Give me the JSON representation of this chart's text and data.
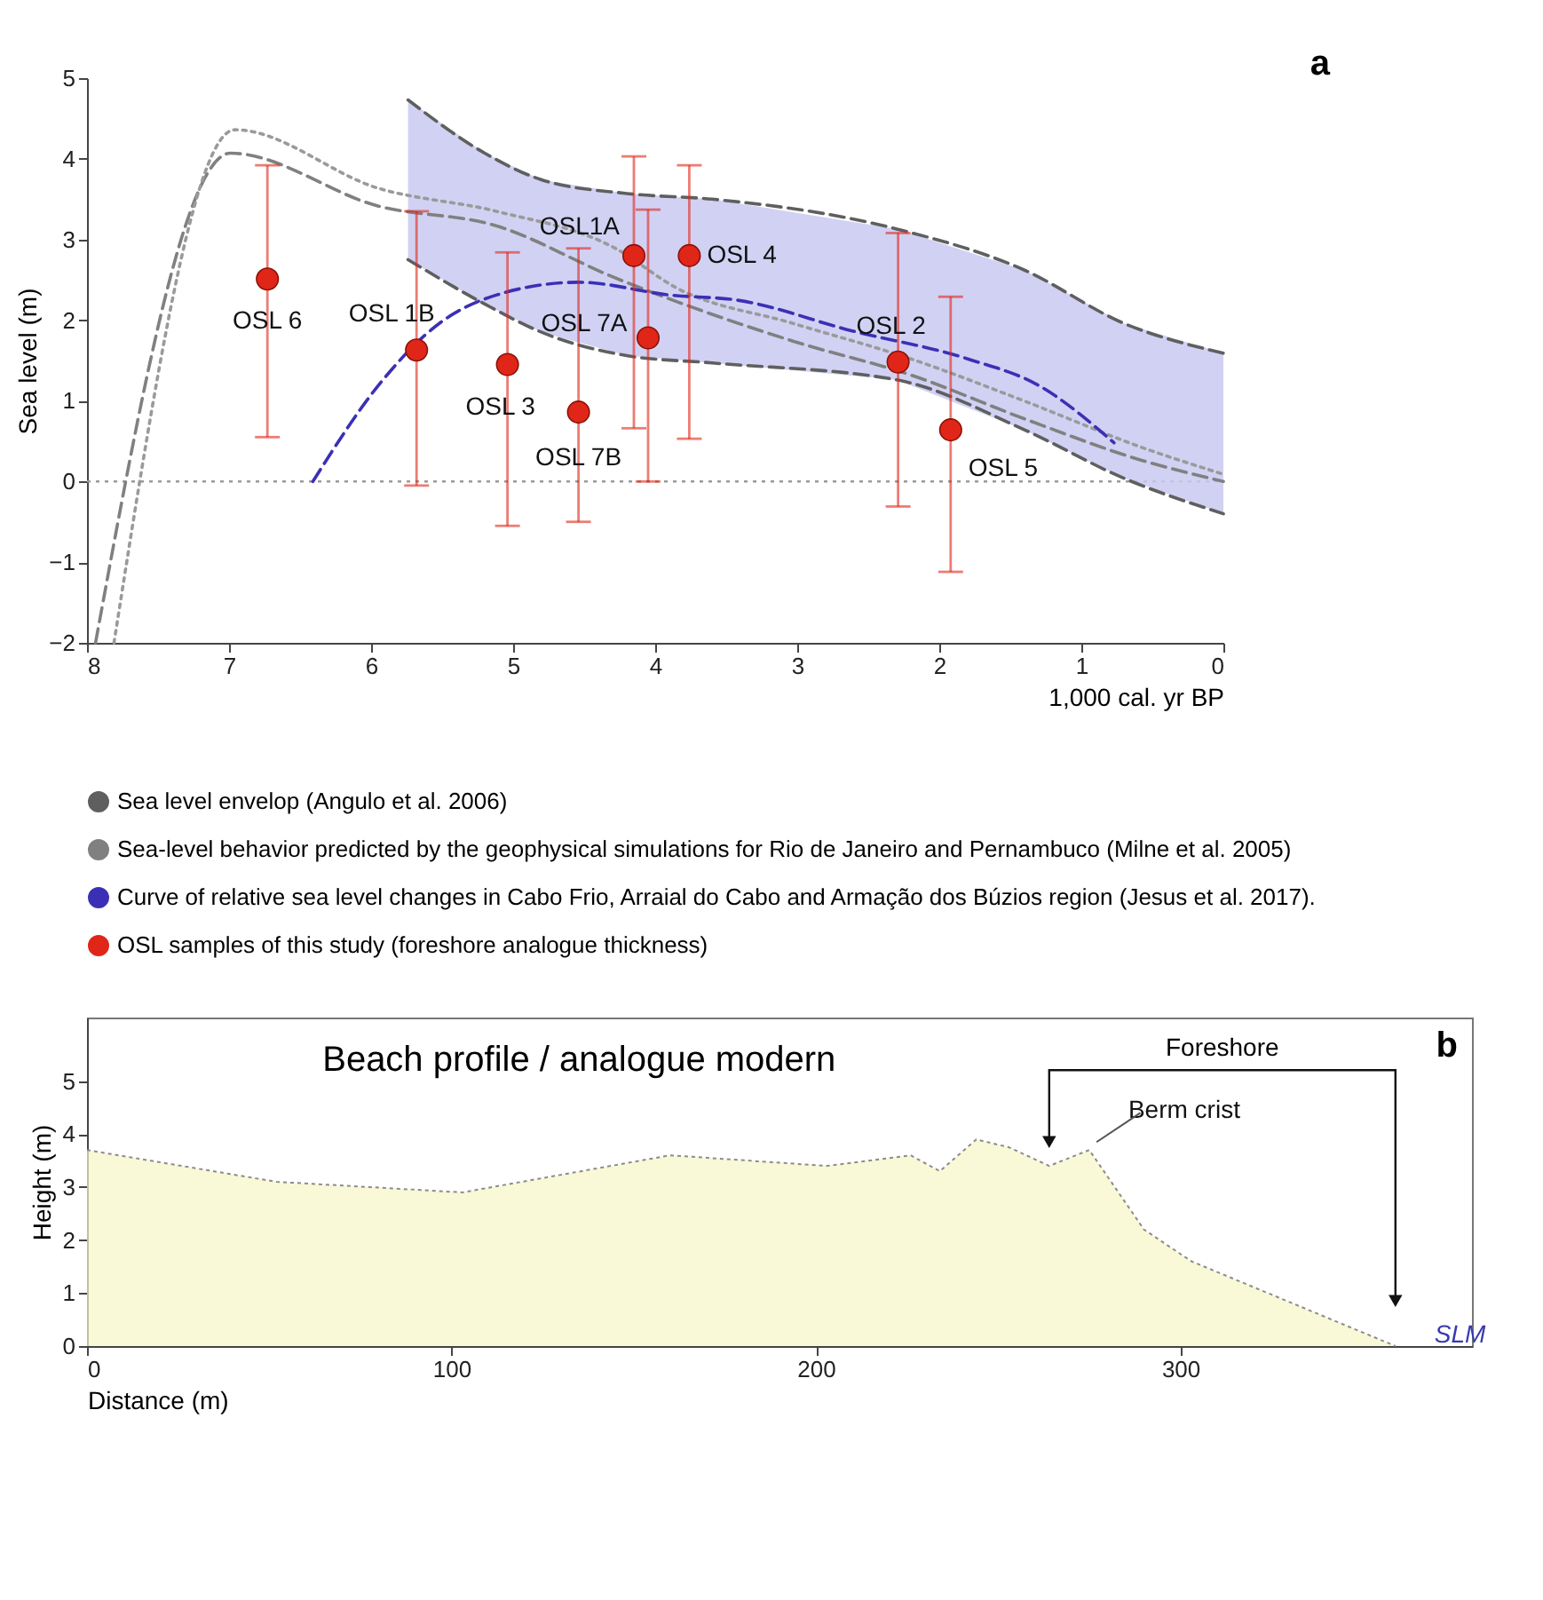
{
  "chart_data": [
    {
      "type": "line",
      "xlabel": "1,000 cal. yr BP",
      "ylabel": "Sea level (m)",
      "xlim": [
        8,
        0
      ],
      "ylim": [
        -2,
        5
      ],
      "xticks": [
        8,
        7,
        6,
        5,
        4,
        3,
        2,
        1,
        0
      ],
      "yticks": [
        -2,
        -1,
        0,
        1,
        2,
        3,
        4,
        5
      ],
      "grid": false,
      "legend": "bottom",
      "ref_lines": [
        {
          "axis": "y",
          "value": 0,
          "color": "#9a9a9a",
          "line_style": "dotted"
        }
      ],
      "series": [
        {
          "name": "Sea level envelop (Angulo et al. 2006)",
          "type": "line",
          "color": "#5f5f5f",
          "line_style": "dashed",
          "x": [
            5.74,
            5.2,
            4.8,
            4.2,
            3.6,
            2.3,
            1.4,
            0.7,
            0
          ],
          "values": [
            4.73,
            4.07,
            3.74,
            3.57,
            3.5,
            3.13,
            2.62,
            1.96,
            1.59
          ],
          "lower": [
            2.75,
            2.2,
            1.85,
            1.56,
            1.47,
            1.26,
            0.64,
            0.04,
            -0.4
          ],
          "upper": [
            4.73,
            4.07,
            3.74,
            3.57,
            3.5,
            3.13,
            2.62,
            1.96,
            1.59
          ]
        },
        {
          "type": "line",
          "color": "#5f5f5f",
          "line_style": "dashed",
          "x": [
            5.74,
            5.2,
            4.8,
            4.2,
            3.6,
            2.3,
            1.4,
            0.7,
            0
          ],
          "values": [
            2.75,
            2.2,
            1.85,
            1.56,
            1.47,
            1.26,
            0.64,
            0.04,
            -0.4
          ]
        },
        {
          "name": "Sea-level behavior predicted by the geophysical simulations for Rio de Janeiro and Pernambuco (Milne et al. 2005)",
          "type": "line",
          "color": "#808080",
          "line_style": "dashed",
          "x": [
            7.94,
            6.99,
            5.94,
            5.12,
            4.29,
            3.03,
            2.2,
            1.39,
            0.57,
            0
          ],
          "values": [
            -2,
            4.07,
            3.41,
            3.17,
            2.53,
            1.74,
            1.32,
            0.77,
            0.26,
            0
          ]
        },
        {
          "type": "line",
          "color": "#9a9a9a",
          "line_style": "dotted",
          "x": [
            7.81,
            6.96,
            5.94,
            5.12,
            4.29,
            3.85,
            3.03,
            2.2,
            1.39,
            0.57,
            0
          ],
          "values": [
            -2,
            4.36,
            3.63,
            3.35,
            2.9,
            2.4,
            1.96,
            1.52,
            0.99,
            0.42,
            0.09
          ]
        },
        {
          "name": "Curve of relative sea level changes in Cabo Frio, Arraial do Cabo and Armação dos Búzios region (Jesus et al. 2017).",
          "type": "line",
          "color": "#3b30b5",
          "line_style": "dashed",
          "x": [
            6.41,
            5.94,
            5.52,
            5.12,
            4.54,
            3.89,
            3.43,
            2.62,
            1.8,
            1.3,
            0.77
          ],
          "values": [
            0,
            1.21,
            1.96,
            2.31,
            2.47,
            2.31,
            2.25,
            1.87,
            1.52,
            1.19,
            0.48
          ]
        },
        {
          "name": "OSL samples of this study (foreshore analogue thickness)",
          "type": "scatter",
          "color": "#e02618",
          "marker": "circle",
          "x": [
            6.73,
            5.68,
            5.04,
            4.54,
            4.15,
            4.05,
            3.76,
            2.29,
            1.92
          ],
          "values": [
            2.51,
            1.63,
            1.45,
            0.86,
            2.8,
            1.78,
            2.8,
            1.48,
            0.64
          ],
          "errors": [
            [
              0.55,
              3.92
            ],
            [
              -0.05,
              3.35
            ],
            [
              -0.55,
              2.84
            ],
            [
              -0.5,
              2.89
            ],
            [
              0.66,
              4.03
            ],
            [
              0,
              3.37
            ],
            [
              0.53,
              3.92
            ],
            [
              -0.31,
              3.08
            ],
            [
              -1.12,
              2.29
            ]
          ]
        }
      ],
      "annotations": [
        {
          "text": "OSL 6",
          "x": 6.73,
          "y": 2.51
        },
        {
          "text": "OSL 1B",
          "x": 5.68,
          "y": 1.63
        },
        {
          "text": "OSL 3",
          "x": 5.04,
          "y": 1.45
        },
        {
          "text": "OSL 7B",
          "x": 4.54,
          "y": 0.86
        },
        {
          "text": "OSL1A",
          "x": 4.15,
          "y": 2.8
        },
        {
          "text": "OSL 7A",
          "x": 4.05,
          "y": 1.78
        },
        {
          "text": "OSL 4",
          "x": 3.76,
          "y": 2.8
        },
        {
          "text": "OSL 2",
          "x": 2.29,
          "y": 1.48
        },
        {
          "text": "OSL 5",
          "x": 1.92,
          "y": 0.64
        },
        "a"
      ]
    },
    {
      "type": "area",
      "xlabel": "Distance (m)",
      "ylabel": "Height (m)",
      "xlim": [
        0,
        380
      ],
      "ylim": [
        0,
        6.2
      ],
      "xticks": [
        0,
        100,
        200,
        300
      ],
      "yticks": [
        0,
        1,
        2,
        3,
        4,
        5
      ],
      "grid": false,
      "color": "#f7f5c6",
      "x": [
        0,
        52,
        103,
        160,
        203,
        226,
        234,
        244,
        253,
        264,
        275,
        281,
        290,
        303,
        359
      ],
      "values": [
        3.7,
        3.1,
        2.9,
        3.6,
        3.4,
        3.6,
        3.3,
        3.9,
        3.75,
        3.4,
        3.7,
        3.1,
        2.2,
        1.6,
        0
      ],
      "annotations": [
        "Beach profile / analogue modern",
        "Foreshore",
        {
          "text": "Berm crist",
          "x": 275,
          "y": 3.7
        },
        {
          "text": "SLM",
          "x": 359,
          "y": 0
        },
        "b"
      ]
    }
  ]
}
